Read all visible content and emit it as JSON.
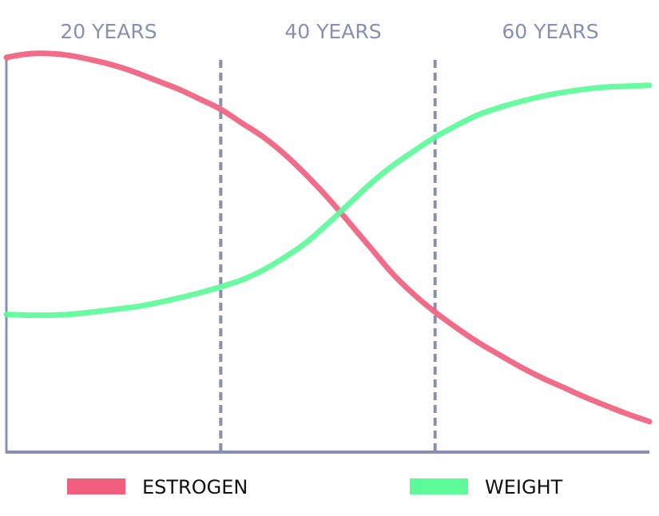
{
  "chart_data": {
    "type": "line",
    "periods": [
      "20 YEARS",
      "40 YEARS",
      "60 YEARS"
    ],
    "x": [
      0,
      0.1,
      0.2,
      0.3,
      0.4,
      0.5,
      0.6,
      0.7,
      0.8,
      0.9,
      1.0,
      1.1,
      1.2,
      1.3,
      1.4,
      1.5,
      1.6,
      1.7,
      1.8,
      1.9,
      2.0,
      2.1,
      2.2,
      2.3,
      2.4,
      2.5,
      2.6,
      2.7,
      2.8,
      2.9,
      3.0
    ],
    "series": [
      {
        "name": "ESTROGEN",
        "color": "#f0607e",
        "values": [
          90.5,
          91.3,
          91.4,
          90.9,
          89.9,
          88.7,
          87.1,
          85.2,
          83.3,
          81.0,
          78.6,
          75.4,
          72.2,
          68.2,
          63.5,
          58.3,
          52.6,
          46.8,
          41.0,
          36.2,
          32.1,
          28.5,
          25.2,
          22.3,
          19.5,
          17.0,
          14.8,
          12.6,
          10.6,
          8.7,
          7.0
        ]
      },
      {
        "name": "WEIGHT",
        "color": "#5dfa9a",
        "values": [
          31.6,
          31.4,
          31.4,
          31.6,
          32.1,
          32.7,
          33.3,
          34.2,
          35.3,
          36.5,
          37.9,
          39.5,
          41.8,
          44.7,
          48.1,
          52.4,
          57.0,
          61.6,
          65.6,
          69.0,
          72.2,
          74.9,
          77.3,
          79.0,
          80.4,
          81.6,
          82.5,
          83.2,
          83.7,
          83.9,
          84.1
        ]
      }
    ],
    "ylim": [
      0,
      100
    ],
    "xlim": [
      0,
      3
    ],
    "grid": false,
    "legend": "bottom"
  }
}
